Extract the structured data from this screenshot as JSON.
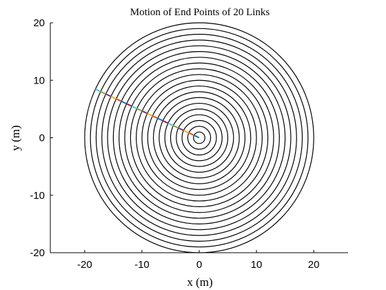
{
  "chart_data": {
    "type": "line",
    "title": "Motion of End Points of 20 Links",
    "xlabel": "x (m)",
    "ylabel": "y (m)",
    "xlim": [
      -26,
      26
    ],
    "ylim": [
      -20,
      20
    ],
    "xticks": [
      -20,
      -10,
      0,
      10,
      20
    ],
    "yticks": [
      -20,
      -10,
      0,
      10,
      20
    ],
    "grid": false,
    "circles": {
      "center": [
        0,
        0
      ],
      "radii": [
        1,
        2,
        3,
        4,
        5,
        6,
        7,
        8,
        9,
        10,
        11,
        12,
        13,
        14,
        15,
        16,
        17,
        18,
        19,
        20
      ],
      "color": "#000000"
    },
    "links": {
      "angle_deg": 155,
      "lengths": [
        1,
        1,
        1,
        1,
        1,
        1,
        1,
        1,
        1,
        1,
        1,
        1,
        1,
        1,
        1,
        1,
        1,
        1,
        1,
        1
      ],
      "colors": [
        "#0072BD",
        "#D95319",
        "#EDB120",
        "#7E2F8E",
        "#77AC30",
        "#4DBEEE",
        "#A2142F"
      ]
    }
  }
}
